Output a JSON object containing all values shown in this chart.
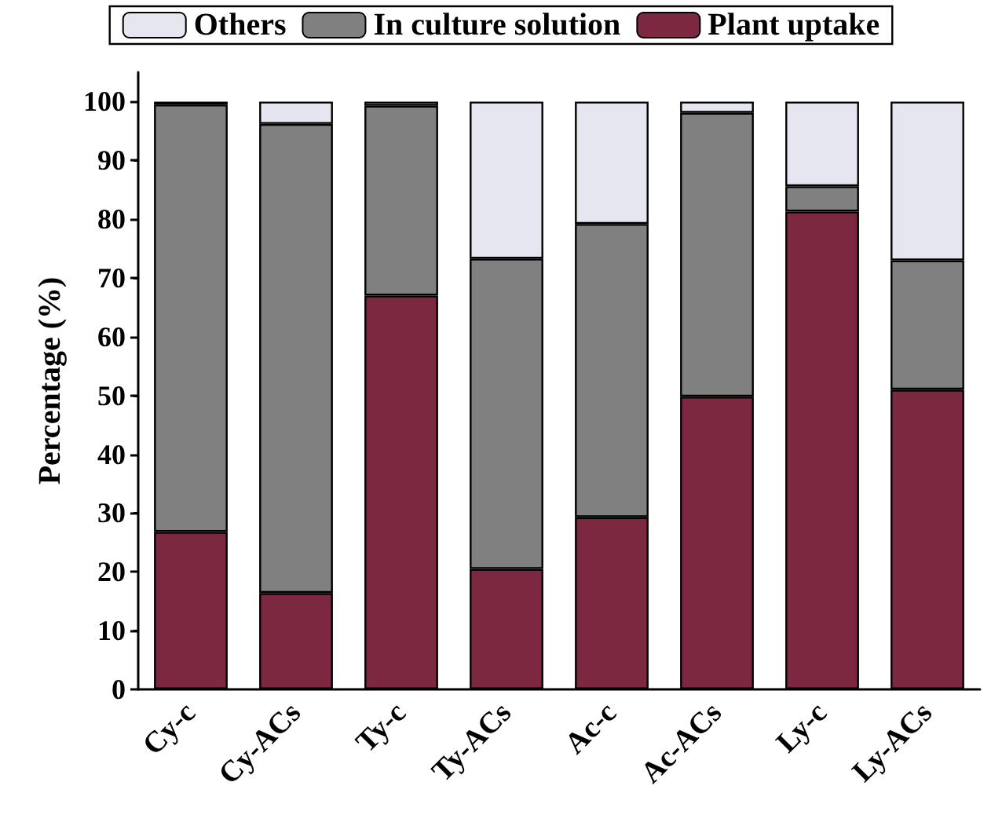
{
  "chart_data": {
    "type": "bar",
    "stacked": true,
    "ylabel": "Percentage (%)",
    "categories": [
      "Cy-c",
      "Cy-ACs",
      "Ty-c",
      "Ty-ACs",
      "Ac-c",
      "Ac-ACs",
      "Ly-c",
      "Ly-ACs"
    ],
    "series": [
      {
        "name": "Plant uptake",
        "color": "#7b2840",
        "values": [
          26.8,
          16.4,
          67.0,
          20.5,
          29.3,
          49.8,
          81.3,
          51.0
        ]
      },
      {
        "name": "In culture solution",
        "color": "#808080",
        "values": [
          72.7,
          79.8,
          32.3,
          52.8,
          49.9,
          48.3,
          4.3,
          22.0
        ]
      },
      {
        "name": "Others",
        "color": "#e6e6f0",
        "values": [
          0.5,
          3.8,
          0.7,
          26.7,
          20.8,
          1.9,
          14.4,
          27.0
        ]
      }
    ],
    "ylim": [
      0,
      105
    ],
    "yticks": [
      0,
      10,
      20,
      30,
      40,
      50,
      60,
      70,
      80,
      90,
      100
    ],
    "grid": false,
    "legend": "top"
  }
}
